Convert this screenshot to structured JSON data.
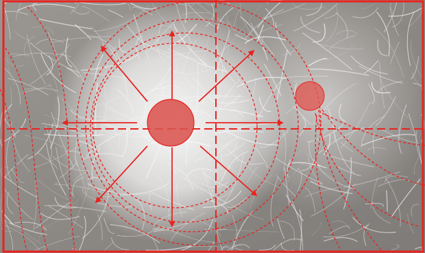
{
  "figure": {
    "accent_color": "#e8231f",
    "marker_fill": "#d9534f",
    "background_tone": "#8f8a86",
    "fiber_color": "#f2f2f2",
    "icons": [
      "large-source-circle",
      "small-sink-circle",
      "radial-arrows",
      "crosshair-lines",
      "streamlines"
    ]
  }
}
